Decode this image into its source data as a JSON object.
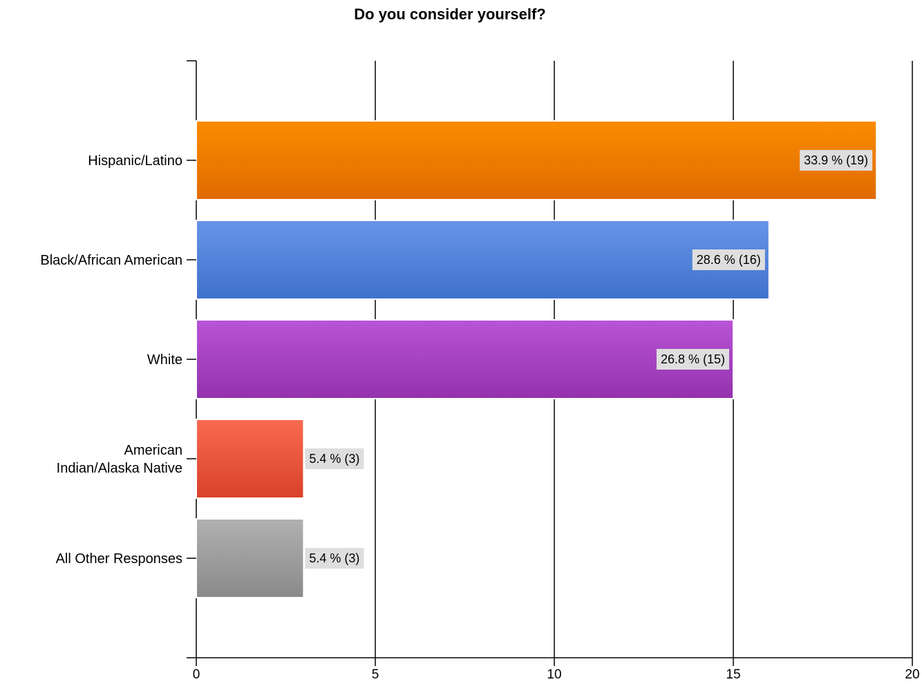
{
  "chart_data": {
    "type": "bar",
    "orientation": "horizontal",
    "title": "Do you consider yourself?",
    "categories": [
      "Hispanic/Latino",
      "Black/African American",
      "White",
      "American Indian/Alaska Native",
      "All Other Responses"
    ],
    "category_label_lines": [
      [
        "Hispanic/Latino"
      ],
      [
        "Black/African American"
      ],
      [
        "White"
      ],
      [
        "American",
        "Indian/Alaska Native"
      ],
      [
        "All Other Responses"
      ]
    ],
    "values": [
      19,
      16,
      15,
      3,
      3
    ],
    "data_labels": [
      "33.9 % (19)",
      "28.6 % (16)",
      "26.8 % (15)",
      "5.4 % (3)",
      "5.4 % (3)"
    ],
    "colors": [
      [
        "#fb8c00",
        "#e06a00"
      ],
      [
        "#6794e8",
        "#3f72cc"
      ],
      [
        "#b954d6",
        "#9332ad"
      ],
      [
        "#f86a50",
        "#d9412a"
      ],
      [
        "#b0b0b0",
        "#8a8a8a"
      ]
    ],
    "xlim": [
      0,
      20
    ],
    "xticks": [
      0,
      5,
      10,
      15,
      20
    ],
    "grid": "vertical",
    "xlabel": "",
    "ylabel": ""
  }
}
